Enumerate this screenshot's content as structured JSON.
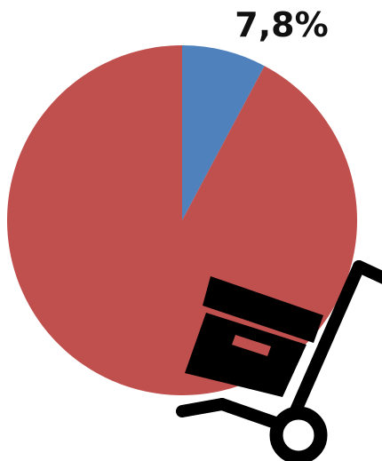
{
  "chart_data": {
    "type": "pie",
    "slices": [
      {
        "value": 7.8,
        "color": "#4F81BD",
        "label": "7,8%"
      },
      {
        "value": 92.2,
        "color": "#C0504D",
        "label": ""
      }
    ],
    "start_angle": "12 o'clock",
    "direction": "clockwise",
    "legend": "none"
  },
  "icons": {
    "overlay": "hand-truck-with-box-icon"
  },
  "colors": {
    "icon": "#000000",
    "background": "#FFFFFF"
  }
}
